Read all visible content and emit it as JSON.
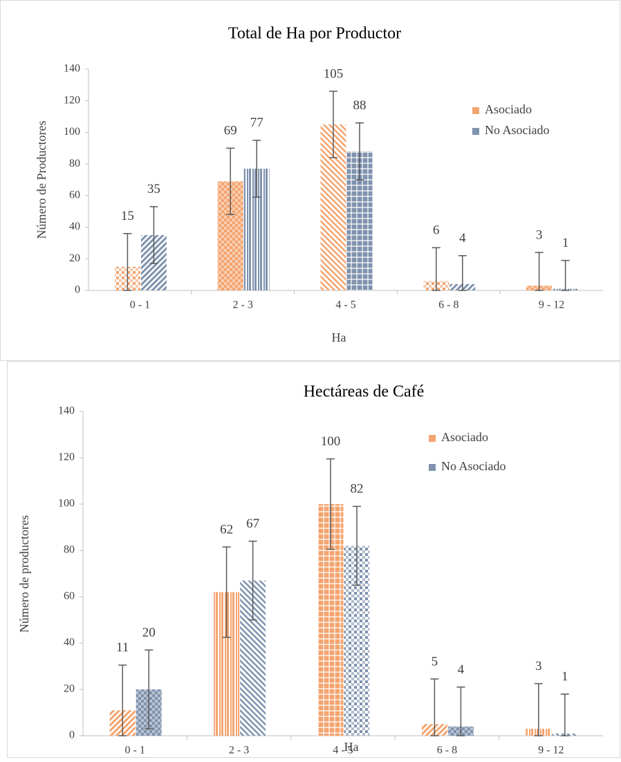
{
  "chart_data": [
    {
      "type": "bar",
      "title": "Total  de Ha por  Productor",
      "x_label": "Ha",
      "y_label": "Número de Productores",
      "categories": [
        "0 - 1",
        "2 - 3",
        "4 - 5",
        "6 - 8",
        "9 - 12"
      ],
      "series": [
        {
          "name": "Asociado",
          "color": "#f4a46f",
          "values": [
            15,
            69,
            105,
            6,
            3
          ],
          "errors": [
            21,
            21,
            21,
            21,
            21
          ]
        },
        {
          "name": "No Asociado",
          "color": "#7f92ae",
          "values": [
            35,
            77,
            88,
            4,
            1
          ],
          "errors": [
            18,
            18,
            18,
            18,
            18
          ]
        }
      ],
      "ylim": [
        0,
        140
      ],
      "yticks": [
        0,
        20,
        40,
        60,
        80,
        100,
        120,
        140
      ],
      "legend": "upper right"
    },
    {
      "type": "bar",
      "title": "Hectáreas de Café",
      "x_label": "Ha",
      "y_label": "Número de productores",
      "categories": [
        "0 - 1",
        "2 - 3",
        "4 - 5",
        "6 - 8",
        "9 - 12"
      ],
      "series": [
        {
          "name": "Asociado",
          "color": "#f4a46f",
          "values": [
            11,
            62,
            100,
            5,
            3
          ],
          "errors": [
            19.5,
            19.5,
            19.5,
            19.5,
            19.5
          ]
        },
        {
          "name": "No Asociado",
          "color": "#7f92ae",
          "values": [
            20,
            67,
            82,
            4,
            1
          ],
          "errors": [
            17,
            17,
            17,
            17,
            17
          ]
        }
      ],
      "ylim": [
        0,
        140
      ],
      "yticks": [
        0,
        20,
        40,
        60,
        80,
        100,
        120,
        140
      ],
      "legend": "upper right"
    }
  ]
}
